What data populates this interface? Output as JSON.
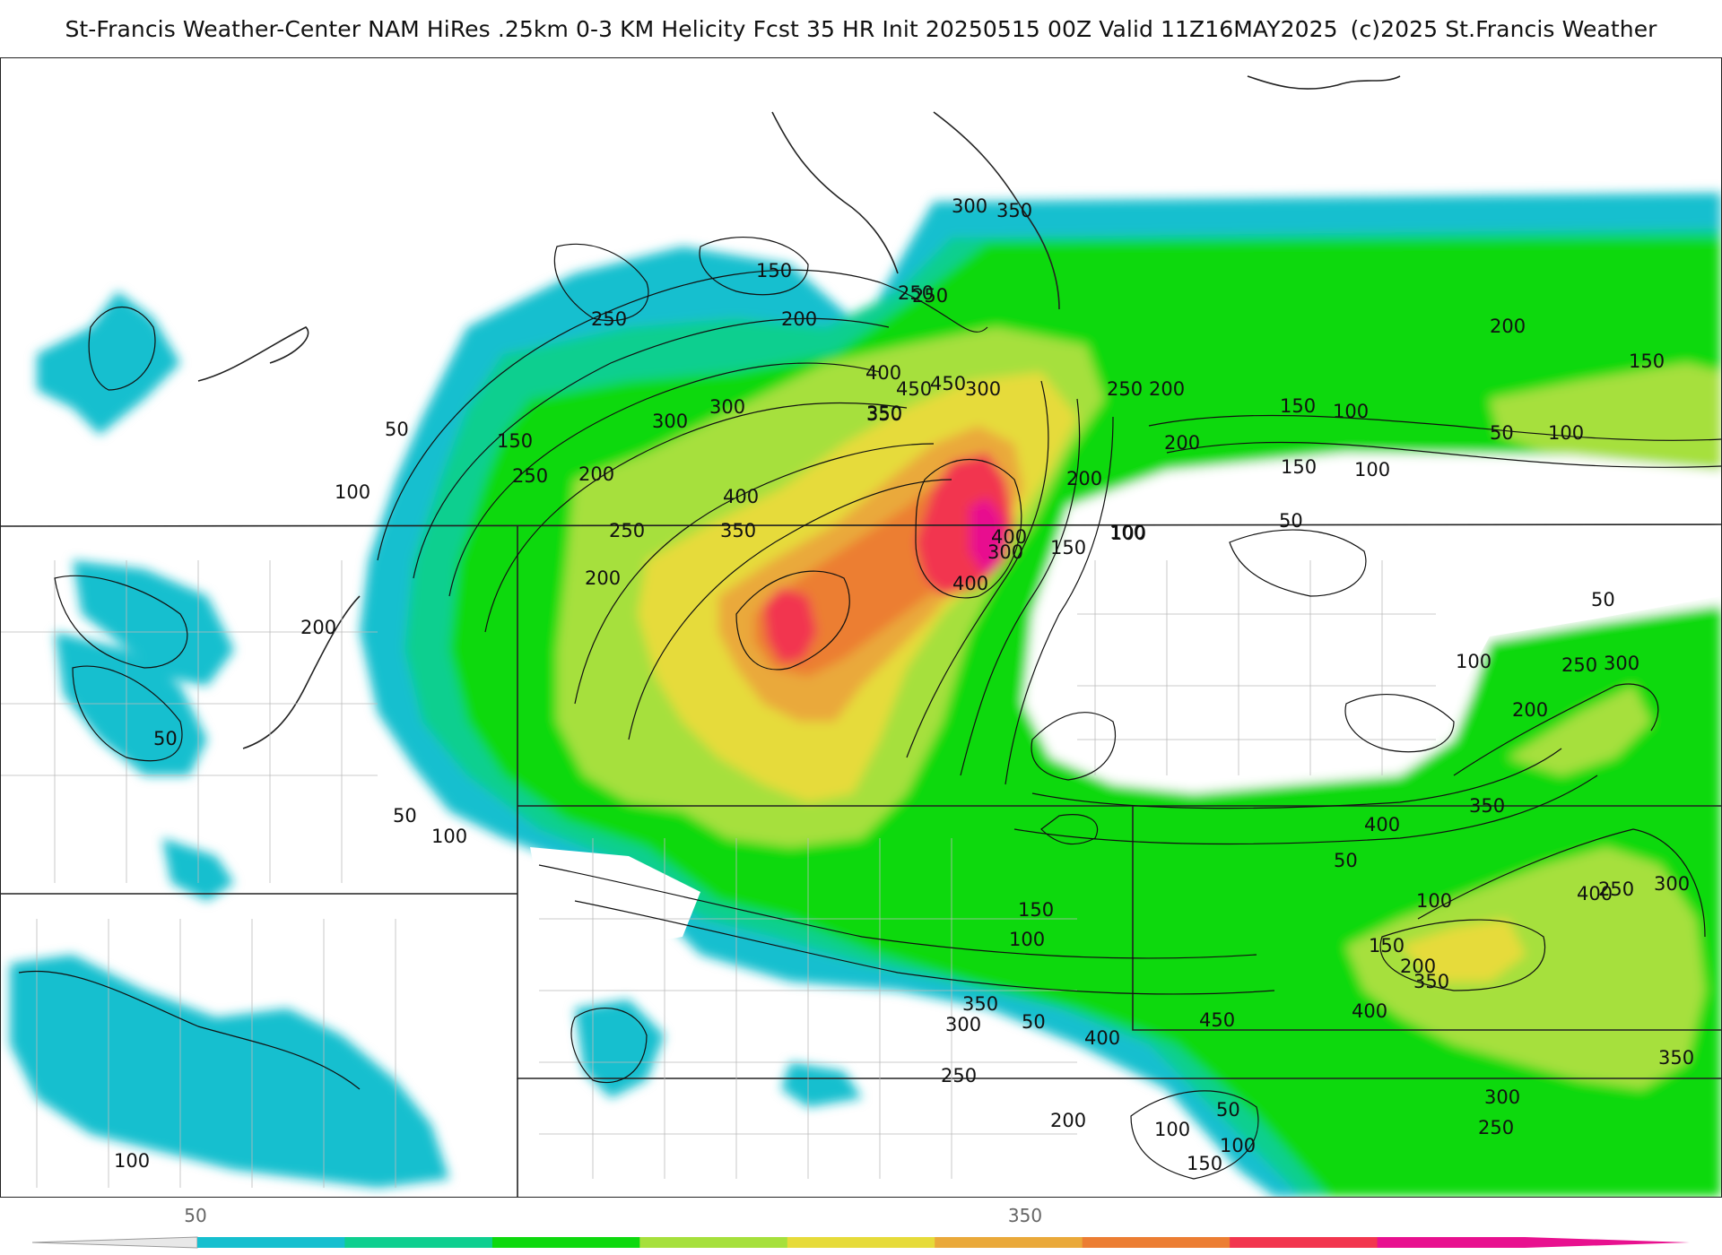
{
  "header": {
    "title": "St-Francis Weather-Center NAM HiRes .25km 0-3 KM Helicity Fcst 35 HR Init 20250515 00Z  Valid 11Z16MAY2025",
    "copyright": "(c)2025 St.Francis Weather"
  },
  "colorbar": {
    "tick_labels": [
      "50",
      "350"
    ],
    "colors": [
      "#16bfcf",
      "#0ecf8f",
      "#0ed90e",
      "#a6e03c",
      "#e6db3a",
      "#eaa93a",
      "#ec7e33",
      "#f2364f",
      "#e8118f"
    ]
  },
  "map": {
    "contour_labels": [
      "50",
      "100",
      "150",
      "200",
      "250",
      "300",
      "350",
      "400",
      "450",
      "300",
      "250",
      "200",
      "150",
      "100",
      "50",
      "100",
      "150",
      "200",
      "250",
      "300",
      "350",
      "400",
      "200",
      "150",
      "250",
      "300",
      "100",
      "50",
      "200",
      "250",
      "350",
      "400",
      "450",
      "300",
      "400",
      "350",
      "250",
      "200",
      "150",
      "100",
      "200",
      "150",
      "100",
      "50",
      "100",
      "200",
      "250",
      "300",
      "350",
      "400",
      "50",
      "100",
      "150",
      "200",
      "250",
      "300",
      "350",
      "400",
      "450",
      "400",
      "350",
      "300",
      "250",
      "200",
      "150",
      "100",
      "50",
      "100",
      "200",
      "250",
      "300",
      "350",
      "400",
      "200",
      "100",
      "150",
      "50",
      "50",
      "100",
      "50",
      "100",
      "200"
    ]
  }
}
